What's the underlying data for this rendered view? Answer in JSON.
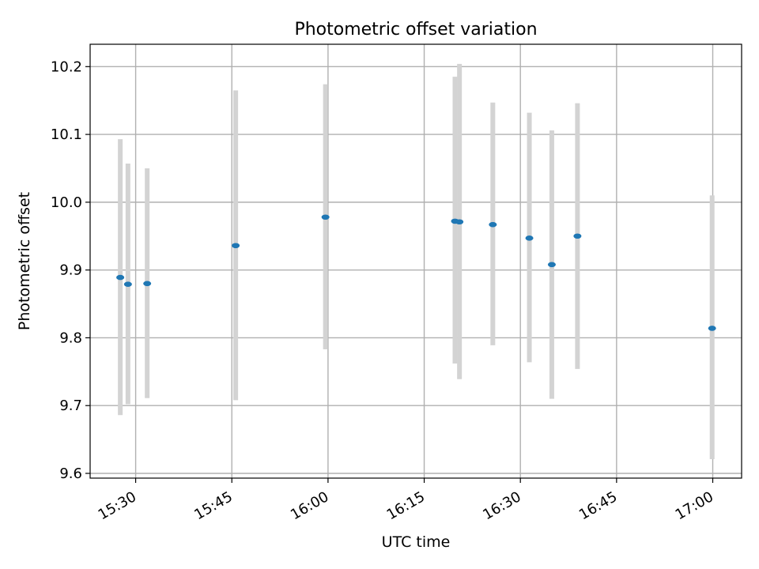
{
  "chart_data": {
    "type": "scatter",
    "title": "Photometric offset variation",
    "xlabel": "UTC time",
    "ylabel": "Photometric offset",
    "x_ticks": [
      "15:30",
      "15:45",
      "16:00",
      "16:15",
      "16:30",
      "16:45",
      "17:00"
    ],
    "y_ticks": [
      "9.6",
      "9.7",
      "9.8",
      "9.9",
      "10.0",
      "10.1",
      "10.2"
    ],
    "xlim": [
      "15:22.9",
      "17:04.5"
    ],
    "ylim": [
      9.593,
      10.233
    ],
    "grid": true,
    "points": [
      {
        "x": "15:27.6",
        "y": 9.889,
        "err_low": 9.686,
        "err_high": 10.093
      },
      {
        "x": "15:28.8",
        "y": 9.879,
        "err_low": 9.702,
        "err_high": 10.057
      },
      {
        "x": "15:31.8",
        "y": 9.88,
        "err_low": 9.711,
        "err_high": 10.05
      },
      {
        "x": "15:45.6",
        "y": 9.936,
        "err_low": 9.708,
        "err_high": 10.165
      },
      {
        "x": "15:59.6",
        "y": 9.978,
        "err_low": 9.783,
        "err_high": 10.174
      },
      {
        "x": "16:19.8",
        "y": 9.972,
        "err_low": 9.762,
        "err_high": 10.185
      },
      {
        "x": "16:20.5",
        "y": 9.971,
        "err_low": 9.739,
        "err_high": 10.204
      },
      {
        "x": "16:25.7",
        "y": 9.967,
        "err_low": 9.789,
        "err_high": 10.147
      },
      {
        "x": "16:31.4",
        "y": 9.947,
        "err_low": 9.764,
        "err_high": 10.132
      },
      {
        "x": "16:34.9",
        "y": 9.908,
        "err_low": 9.71,
        "err_high": 10.106
      },
      {
        "x": "16:38.9",
        "y": 9.95,
        "err_low": 9.754,
        "err_high": 10.146
      },
      {
        "x": "16:59.9",
        "y": 9.814,
        "err_low": 9.621,
        "err_high": 10.01
      }
    ],
    "colors": {
      "marker": "#1f77b4",
      "errorbar": "#d3d3d3",
      "grid": "#b0b0b0",
      "axis": "#000000"
    }
  }
}
